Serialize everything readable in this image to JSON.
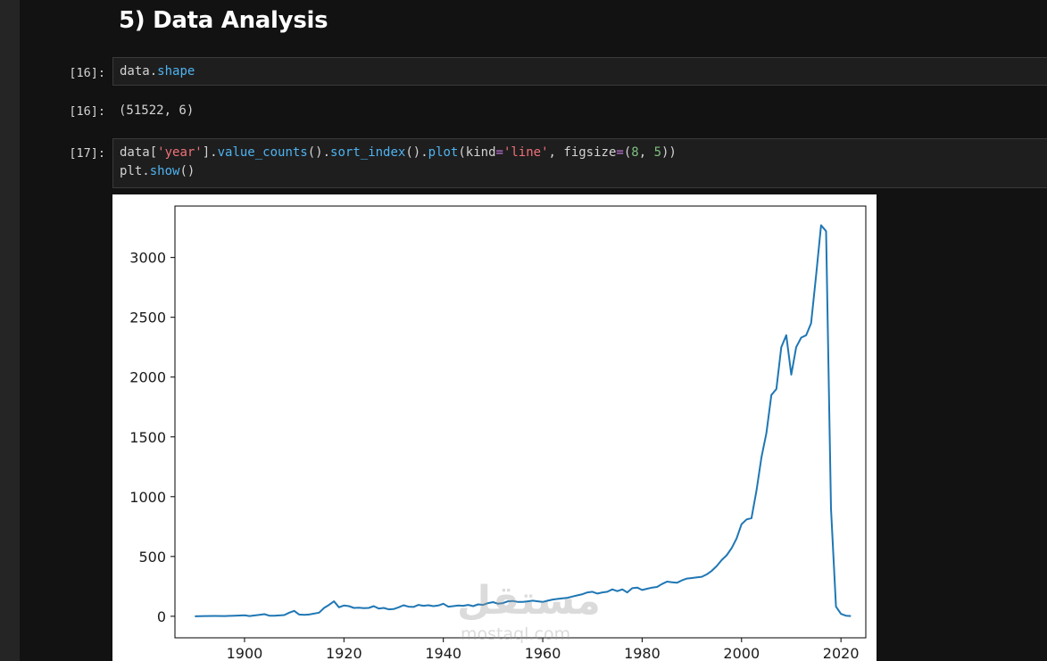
{
  "notebook": {
    "heading": "5) Data Analysis",
    "cells": [
      {
        "input_prompt": "[16]:",
        "code": "data.shape",
        "output_prompt": "[16]:",
        "output": "(51522, 6)"
      },
      {
        "input_prompt": "[17]:",
        "code_line_1": "data['year'].value_counts().sort_index().plot(kind='line', figsize=(8, 5))",
        "code_line_2": "plt.show()"
      }
    ],
    "colors": {
      "background": "#121212",
      "cell_background": "#1e1e1e",
      "attr": "#4fb3f0",
      "string": "#f07178",
      "number": "#7fbf7f",
      "operator": "#c678dd",
      "line": "#1f77b4"
    }
  },
  "watermark": {
    "arabic": "مستقل",
    "latin": "mostaql.com"
  },
  "chart_data": {
    "type": "line",
    "title": "",
    "xlabel": "",
    "ylabel": "",
    "xlim": [
      1886,
      2025
    ],
    "ylim": [
      -180,
      3430
    ],
    "xticks": [
      1900,
      1920,
      1940,
      1960,
      1980,
      2000,
      2020
    ],
    "yticks": [
      0,
      500,
      1000,
      1500,
      2000,
      2500,
      3000
    ],
    "grid": false,
    "series": [
      {
        "color": "#1f77b4",
        "points": [
          [
            1890,
            0
          ],
          [
            1892,
            2
          ],
          [
            1894,
            3
          ],
          [
            1896,
            2
          ],
          [
            1898,
            4
          ],
          [
            1900,
            8
          ],
          [
            1901,
            2
          ],
          [
            1903,
            12
          ],
          [
            1904,
            18
          ],
          [
            1905,
            5
          ],
          [
            1906,
            4
          ],
          [
            1908,
            10
          ],
          [
            1909,
            30
          ],
          [
            1910,
            45
          ],
          [
            1911,
            15
          ],
          [
            1912,
            12
          ],
          [
            1913,
            15
          ],
          [
            1915,
            30
          ],
          [
            1916,
            70
          ],
          [
            1917,
            95
          ],
          [
            1918,
            125
          ],
          [
            1919,
            75
          ],
          [
            1920,
            90
          ],
          [
            1921,
            85
          ],
          [
            1922,
            70
          ],
          [
            1923,
            72
          ],
          [
            1924,
            68
          ],
          [
            1925,
            70
          ],
          [
            1926,
            85
          ],
          [
            1927,
            65
          ],
          [
            1928,
            70
          ],
          [
            1929,
            58
          ],
          [
            1930,
            60
          ],
          [
            1931,
            75
          ],
          [
            1932,
            92
          ],
          [
            1933,
            80
          ],
          [
            1934,
            78
          ],
          [
            1935,
            95
          ],
          [
            1936,
            88
          ],
          [
            1937,
            92
          ],
          [
            1938,
            85
          ],
          [
            1939,
            90
          ],
          [
            1940,
            105
          ],
          [
            1941,
            80
          ],
          [
            1942,
            85
          ],
          [
            1943,
            90
          ],
          [
            1944,
            88
          ],
          [
            1945,
            95
          ],
          [
            1946,
            85
          ],
          [
            1947,
            100
          ],
          [
            1948,
            95
          ],
          [
            1949,
            110
          ],
          [
            1950,
            118
          ],
          [
            1951,
            105
          ],
          [
            1952,
            110
          ],
          [
            1953,
            125
          ],
          [
            1954,
            128
          ],
          [
            1955,
            120
          ],
          [
            1956,
            120
          ],
          [
            1957,
            125
          ],
          [
            1958,
            130
          ],
          [
            1959,
            125
          ],
          [
            1960,
            120
          ],
          [
            1961,
            130
          ],
          [
            1962,
            140
          ],
          [
            1963,
            145
          ],
          [
            1964,
            150
          ],
          [
            1965,
            155
          ],
          [
            1966,
            165
          ],
          [
            1967,
            175
          ],
          [
            1968,
            185
          ],
          [
            1969,
            200
          ],
          [
            1970,
            205
          ],
          [
            1971,
            190
          ],
          [
            1972,
            200
          ],
          [
            1973,
            205
          ],
          [
            1974,
            225
          ],
          [
            1975,
            210
          ],
          [
            1976,
            225
          ],
          [
            1977,
            200
          ],
          [
            1978,
            235
          ],
          [
            1979,
            240
          ],
          [
            1980,
            220
          ],
          [
            1981,
            230
          ],
          [
            1982,
            240
          ],
          [
            1983,
            245
          ],
          [
            1984,
            270
          ],
          [
            1985,
            290
          ],
          [
            1986,
            285
          ],
          [
            1987,
            280
          ],
          [
            1988,
            300
          ],
          [
            1989,
            315
          ],
          [
            1990,
            320
          ],
          [
            1991,
            325
          ],
          [
            1992,
            330
          ],
          [
            1993,
            350
          ],
          [
            1994,
            380
          ],
          [
            1995,
            420
          ],
          [
            1996,
            470
          ],
          [
            1997,
            510
          ],
          [
            1998,
            570
          ],
          [
            1999,
            650
          ],
          [
            2000,
            770
          ],
          [
            2001,
            810
          ],
          [
            2002,
            820
          ],
          [
            2003,
            1050
          ],
          [
            2004,
            1330
          ],
          [
            2005,
            1530
          ],
          [
            2006,
            1850
          ],
          [
            2007,
            1900
          ],
          [
            2008,
            2250
          ],
          [
            2009,
            2350
          ],
          [
            2010,
            2020
          ],
          [
            2011,
            2250
          ],
          [
            2012,
            2330
          ],
          [
            2013,
            2350
          ],
          [
            2014,
            2450
          ],
          [
            2015,
            2850
          ],
          [
            2016,
            3270
          ],
          [
            2017,
            3220
          ],
          [
            2018,
            900
          ],
          [
            2019,
            80
          ],
          [
            2020,
            20
          ],
          [
            2021,
            5
          ],
          [
            2022,
            2
          ]
        ]
      }
    ]
  }
}
